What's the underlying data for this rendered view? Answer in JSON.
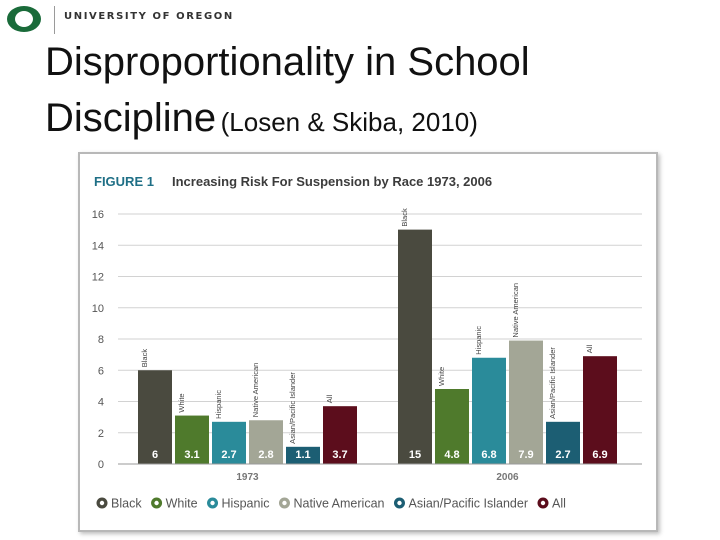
{
  "header": {
    "university": "UNIVERSITY OF OREGON",
    "logo_icon": "oregon-o-logo"
  },
  "slide": {
    "title_line1": "Disproportionality in School",
    "title_line2": "Discipline",
    "citation": "(Losen & Skiba, 2010)"
  },
  "colors": {
    "Black": "#4a4a3f",
    "White": "#4f7a2c",
    "Hispanic": "#2a8b9a",
    "Native American": "#a3a696",
    "Asian/Pacific Islander": "#1c5e73",
    "All": "#5c0d1c",
    "figure_label": "#1f6f86",
    "title_text": "#3c3c3c"
  },
  "chart_data": {
    "type": "bar",
    "figure_label": "FIGURE 1",
    "title": "Increasing Risk For Suspension by Race 1973, 2006",
    "xlabel": "",
    "ylabel": "",
    "ylim": [
      0,
      16
    ],
    "yticks": [
      "0",
      "2",
      "4",
      "6",
      "8",
      "10",
      "12",
      "14",
      "16"
    ],
    "categories": [
      "1973",
      "2006"
    ],
    "series": [
      {
        "name": "Black",
        "values": [
          6,
          15
        ]
      },
      {
        "name": "White",
        "values": [
          3.1,
          4.8
        ]
      },
      {
        "name": "Hispanic",
        "values": [
          2.7,
          6.8
        ]
      },
      {
        "name": "Native American",
        "values": [
          2.8,
          7.9
        ]
      },
      {
        "name": "Asian/Pacific Islander",
        "values": [
          1.1,
          2.7
        ]
      },
      {
        "name": "All",
        "values": [
          3.7,
          6.9
        ]
      }
    ],
    "bar_labels": [
      [
        "Black",
        "White",
        "Hispanic",
        "Native American",
        "Asian/Pacific Islander",
        "All"
      ],
      [
        "Black",
        "White",
        "Hispanic",
        "Native American",
        "Asian/Pacific Islander",
        "All"
      ]
    ],
    "value_labels": [
      [
        "6",
        "3.1",
        "2.7",
        "2.8",
        "1.1",
        "3.7"
      ],
      [
        "15",
        "4.8",
        "6.8",
        "7.9",
        "2.7",
        "6.9"
      ]
    ],
    "legend": [
      "Black",
      "White",
      "Hispanic",
      "Native American",
      "Asian/Pacific Islander",
      "All"
    ],
    "legend_position": "bottom",
    "grid": true
  }
}
